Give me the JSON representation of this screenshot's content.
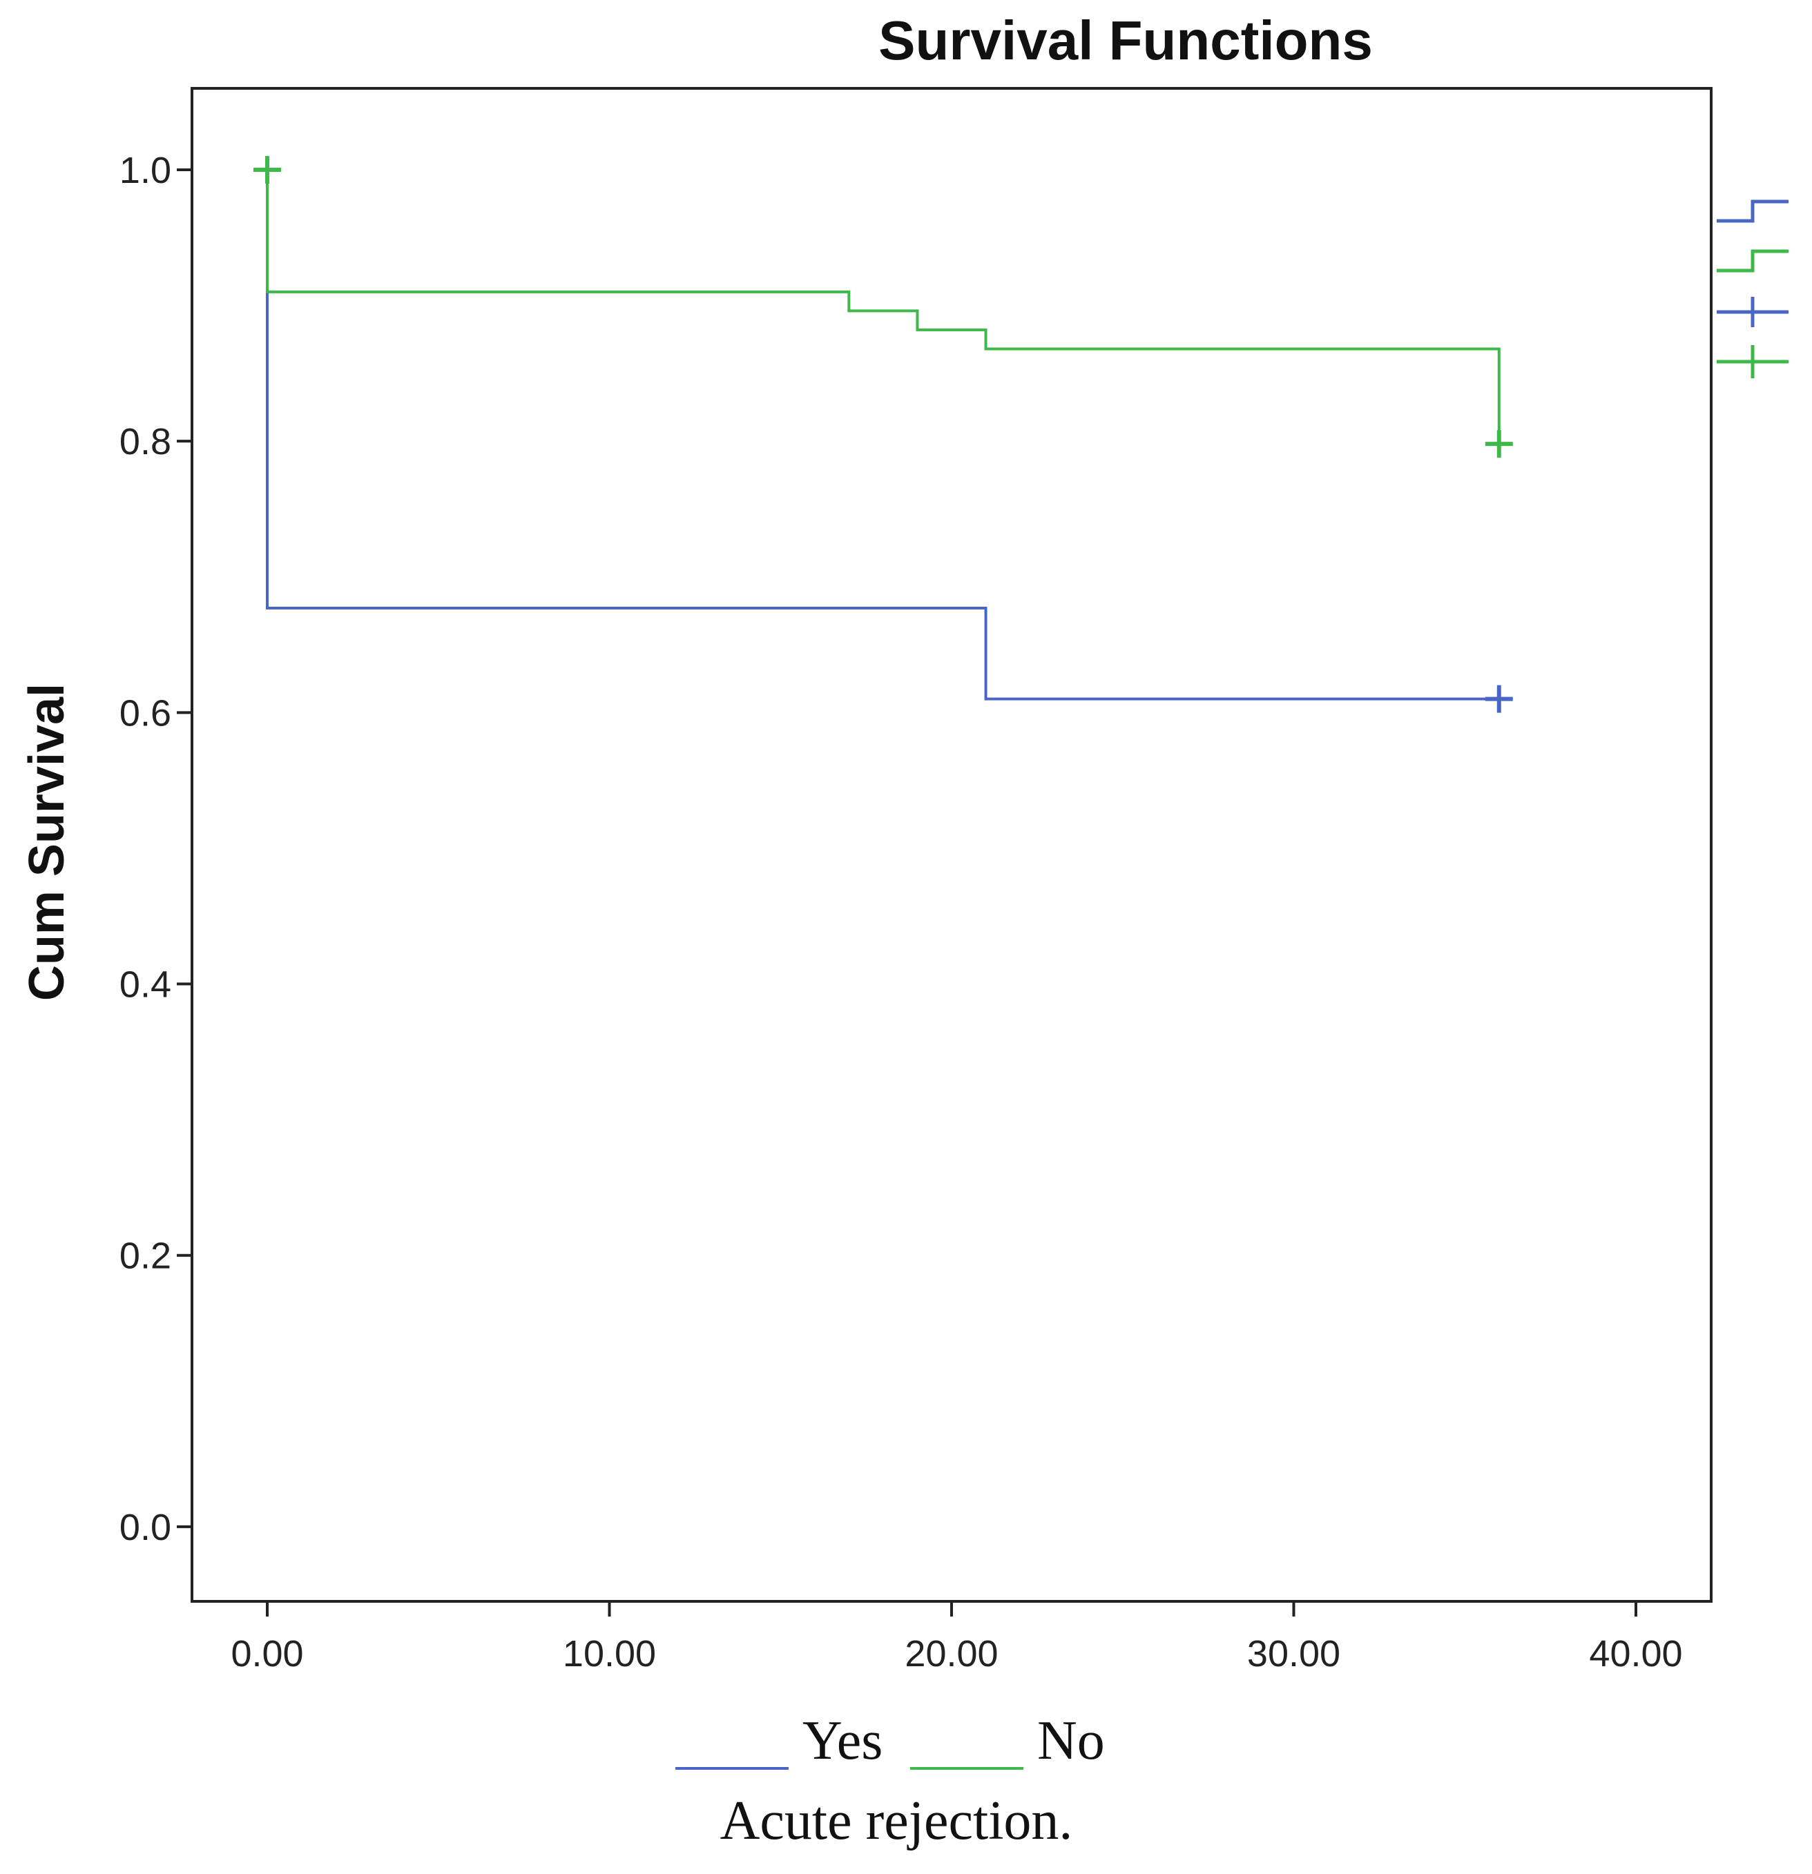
{
  "chart_data": {
    "type": "line",
    "step": true,
    "title": "Survival Functions",
    "xlabel": "",
    "ylabel": "Cum Survival",
    "xlim": [
      -2.2,
      42.2
    ],
    "ylim": [
      -0.055,
      1.06
    ],
    "xticks": [
      0,
      10,
      20,
      30,
      40
    ],
    "xtick_labels": [
      "0.00",
      "10.00",
      "20.00",
      "30.00",
      "40.00"
    ],
    "yticks": [
      0,
      0.2,
      0.4,
      0.6,
      0.8,
      1.0
    ],
    "ytick_labels": [
      "0.0",
      "0.2",
      "0.4",
      "0.6",
      "0.8",
      "1.0"
    ],
    "grid": false,
    "series": [
      {
        "name": "Yes",
        "color": "#4a66c4",
        "x": [
          0,
          0,
          21,
          21,
          36
        ],
        "y": [
          1.0,
          0.677,
          0.677,
          0.61,
          0.61
        ],
        "censored": [
          {
            "x": 36,
            "y": 0.61
          }
        ]
      },
      {
        "name": "No",
        "color": "#3fb84a",
        "x": [
          0,
          0,
          17,
          17,
          19,
          19,
          21,
          21,
          36,
          36
        ],
        "y": [
          1.0,
          0.91,
          0.91,
          0.896,
          0.896,
          0.882,
          0.882,
          0.868,
          0.868,
          0.798
        ],
        "censored": [
          {
            "x": 0,
            "y": 1.0
          },
          {
            "x": 36,
            "y": 0.798
          }
        ]
      }
    ],
    "side_legend": {
      "items": [
        "yes-step",
        "no-step",
        "yes-censored",
        "no-censored"
      ],
      "placement": "right"
    },
    "legend": {
      "placement": "bottom",
      "items": [
        {
          "label": "Yes",
          "color": "#4a66c4"
        },
        {
          "label": "No",
          "color": "#3fb84a"
        }
      ]
    },
    "caption": "Acute rejection."
  }
}
